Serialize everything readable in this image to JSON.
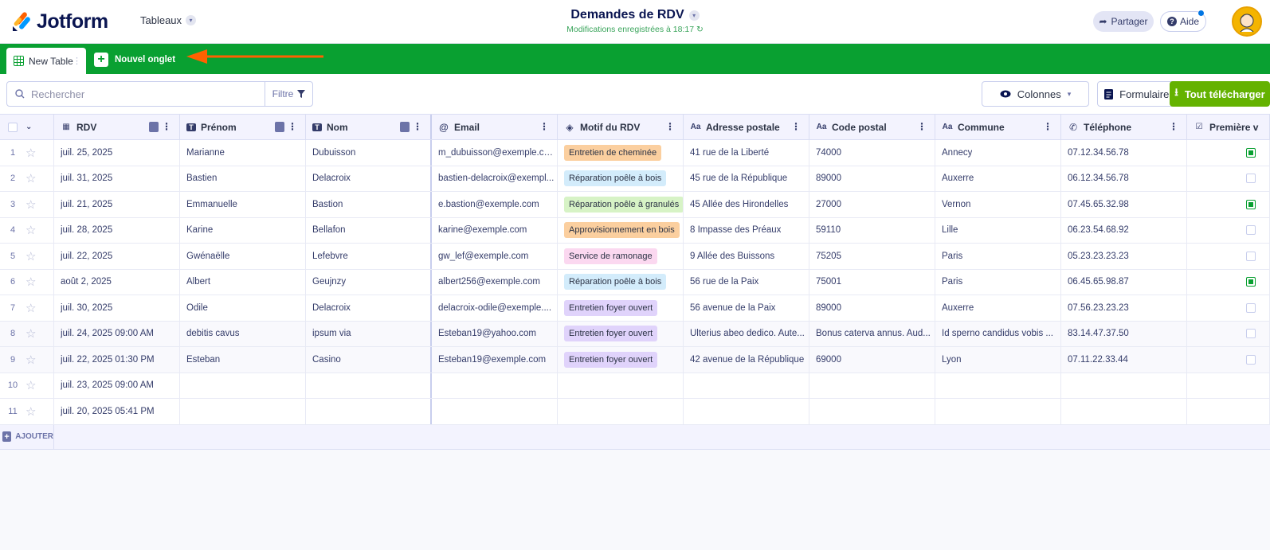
{
  "app": {
    "brand": "Jotform",
    "workspace_label": "Tableaux"
  },
  "header": {
    "title": "Demandes de RDV",
    "saved_status": "Modifications enregistrées à 18:17",
    "share_label": "Partager",
    "help_label": "Aide"
  },
  "tabs": {
    "active_label": "New Table",
    "new_tab_label": "Nouvel onglet"
  },
  "toolbar": {
    "search_placeholder": "Rechercher",
    "filter_label": "Filtre",
    "columns_label": "Colonnes",
    "form_label": "Formulaire",
    "download_label": "Tout télécharger"
  },
  "columns": [
    {
      "key": "rdv",
      "label": "RDV",
      "icon": "calendar-icon"
    },
    {
      "key": "prenom",
      "label": "Prénom",
      "icon": "text-icon"
    },
    {
      "key": "nom",
      "label": "Nom",
      "icon": "text-icon"
    },
    {
      "key": "email",
      "label": "Email",
      "icon": "at-icon"
    },
    {
      "key": "motif",
      "label": "Motif du RDV",
      "icon": "tag-icon"
    },
    {
      "key": "adresse",
      "label": "Adresse postale",
      "icon": "aa-icon"
    },
    {
      "key": "cp",
      "label": "Code postal",
      "icon": "aa-icon"
    },
    {
      "key": "commune",
      "label": "Commune",
      "icon": "aa-icon"
    },
    {
      "key": "tel",
      "label": "Téléphone",
      "icon": "phone-icon"
    },
    {
      "key": "premiere",
      "label": "Première v",
      "icon": "checkbox-icon"
    }
  ],
  "tag_colors": {
    "Entretien de cheminée": "#fbcf9f",
    "Réparation poêle à bois": "#d3ecfb",
    "Réparation poêle à granulés": "#d7f3c6",
    "Approvisionnement en bois": "#fbcf9f",
    "Service de ramonage": "#fbd8f0",
    "Entretien foyer ouvert": "#e0d3fb"
  },
  "rows": [
    {
      "n": "1",
      "rdv": "juil. 25, 2025",
      "prenom": "Marianne",
      "nom": "Dubuisson",
      "email": "m_dubuisson@exemple.com",
      "motif": "Entretien de cheminée",
      "adresse": "41 rue de la Liberté",
      "cp": "74000",
      "commune": "Annecy",
      "tel": "07.12.34.56.78",
      "premiere": true
    },
    {
      "n": "2",
      "rdv": "juil. 31, 2025",
      "prenom": "Bastien",
      "nom": "Delacroix",
      "email": "bastien-delacroix@exempl...",
      "motif": "Réparation poêle à bois",
      "adresse": "45 rue de la République",
      "cp": "89000",
      "commune": "Auxerre",
      "tel": "06.12.34.56.78",
      "premiere": false
    },
    {
      "n": "3",
      "rdv": "juil. 21, 2025",
      "prenom": "Emmanuelle",
      "nom": "Bastion",
      "email": "e.bastion@exemple.com",
      "motif": "Réparation poêle à granulés",
      "adresse": "45 Allée des Hirondelles",
      "cp": "27000",
      "commune": "Vernon",
      "tel": "07.45.65.32.98",
      "premiere": true
    },
    {
      "n": "4",
      "rdv": "juil. 28, 2025",
      "prenom": "Karine",
      "nom": "Bellafon",
      "email": "karine@exemple.com",
      "motif": "Approvisionnement en bois",
      "adresse": "8 Impasse des Préaux",
      "cp": "59110",
      "commune": "Lille",
      "tel": "06.23.54.68.92",
      "premiere": false
    },
    {
      "n": "5",
      "rdv": "juil. 22, 2025",
      "prenom": "Gwénaëlle",
      "nom": "Lefebvre",
      "email": "gw_lef@exemple.com",
      "motif": "Service de ramonage",
      "adresse": "9 Allée des Buissons",
      "cp": "75205",
      "commune": "Paris",
      "tel": "05.23.23.23.23",
      "premiere": false
    },
    {
      "n": "6",
      "rdv": "août 2, 2025",
      "prenom": "Albert",
      "nom": "Geujnzy",
      "email": "albert256@exemple.com",
      "motif": "Réparation poêle à bois",
      "adresse": "56 rue de la Paix",
      "cp": "75001",
      "commune": "Paris",
      "tel": "06.45.65.98.87",
      "premiere": true
    },
    {
      "n": "7",
      "rdv": "juil. 30, 2025",
      "prenom": "Odile",
      "nom": "Delacroix",
      "email": "delacroix-odile@exemple....",
      "motif": "Entretien foyer ouvert",
      "adresse": "56 avenue de la Paix",
      "cp": "89000",
      "commune": "Auxerre",
      "tel": "07.56.23.23.23",
      "premiere": false
    },
    {
      "n": "8",
      "rdv": "juil. 24, 2025 09:00 AM",
      "prenom": "debitis cavus",
      "nom": "ipsum via",
      "email": "Esteban19@yahoo.com",
      "motif": "Entretien foyer ouvert",
      "adresse": "Ulterius abeo dedico. Aute...",
      "cp": "Bonus caterva annus. Aud...",
      "commune": "Id sperno candidus vobis ...",
      "tel": "83.14.47.37.50",
      "premiere": false
    },
    {
      "n": "9",
      "rdv": "juil. 22, 2025 01:30 PM",
      "prenom": "Esteban",
      "nom": "Casino",
      "email": "Esteban19@exemple.com",
      "motif": "Entretien foyer ouvert",
      "adresse": "42 avenue de la République",
      "cp": "69000",
      "commune": "Lyon",
      "tel": "07.11.22.33.44",
      "premiere": false
    },
    {
      "n": "10",
      "rdv": "juil. 23, 2025 09:00 AM",
      "prenom": "",
      "nom": "",
      "email": "",
      "motif": "",
      "adresse": "",
      "cp": "",
      "commune": "",
      "tel": "",
      "premiere": null
    },
    {
      "n": "11",
      "rdv": "juil. 20, 2025 05:41 PM",
      "prenom": "",
      "nom": "",
      "email": "",
      "motif": "",
      "adresse": "",
      "cp": "",
      "commune": "",
      "tel": "",
      "premiere": null
    }
  ],
  "add_row_label": "AJOUTER",
  "colors": {
    "brand_green": "#09a031",
    "download_green": "#64b200",
    "accent_orange": "#ff6100"
  }
}
